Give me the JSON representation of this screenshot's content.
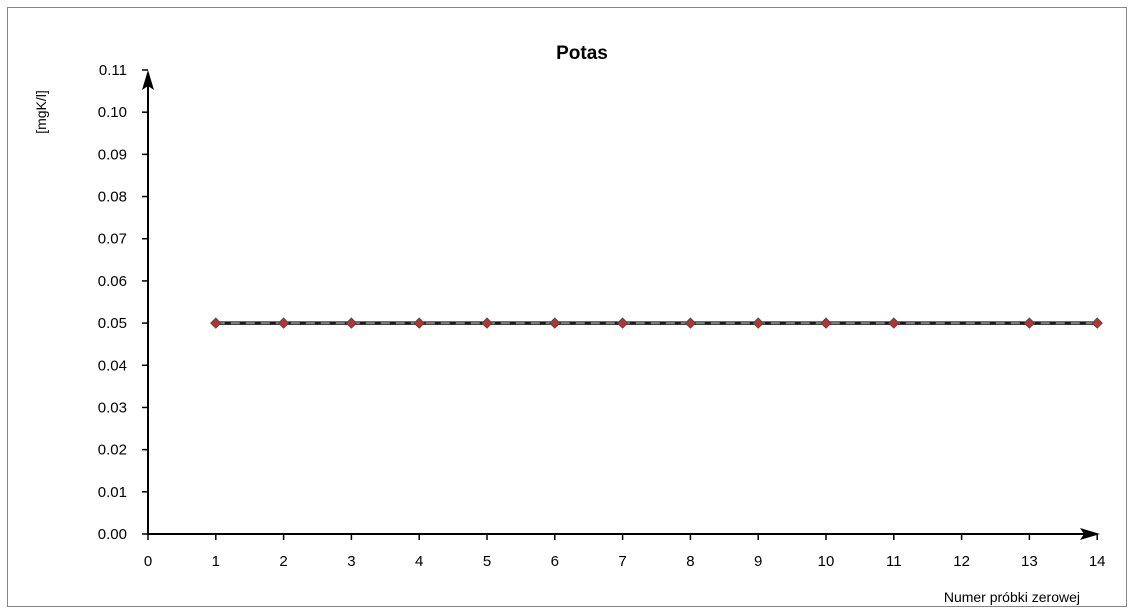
{
  "chart_data": {
    "type": "line",
    "title": "Potas",
    "xlabel": "Numer próbki zerowej",
    "ylabel": "[mgK/l]",
    "x_tick_labels": [
      "0",
      "1",
      "2",
      "3",
      "4",
      "5",
      "6",
      "7",
      "8",
      "9",
      "10",
      "11",
      "12",
      "13",
      "14"
    ],
    "y_tick_labels": [
      "0.00",
      "0.01",
      "0.02",
      "0.03",
      "0.04",
      "0.05",
      "0.06",
      "0.07",
      "0.08",
      "0.09",
      "0.10",
      "0.11"
    ],
    "ylim": [
      0,
      0.11
    ],
    "grid": false,
    "series": [
      {
        "x": [
          1,
          2,
          3,
          4,
          5,
          6,
          7,
          8,
          9,
          10,
          11,
          13,
          14
        ],
        "y": [
          0.05,
          0.05,
          0.05,
          0.05,
          0.05,
          0.05,
          0.05,
          0.05,
          0.05,
          0.05,
          0.05,
          0.05,
          0.05
        ],
        "line_color": "#1a1a1a",
        "marker": "diamond",
        "marker_color": "#c0302c"
      }
    ],
    "reference_line": {
      "y": 0.05,
      "style": "dashed",
      "color": "#808080"
    }
  }
}
